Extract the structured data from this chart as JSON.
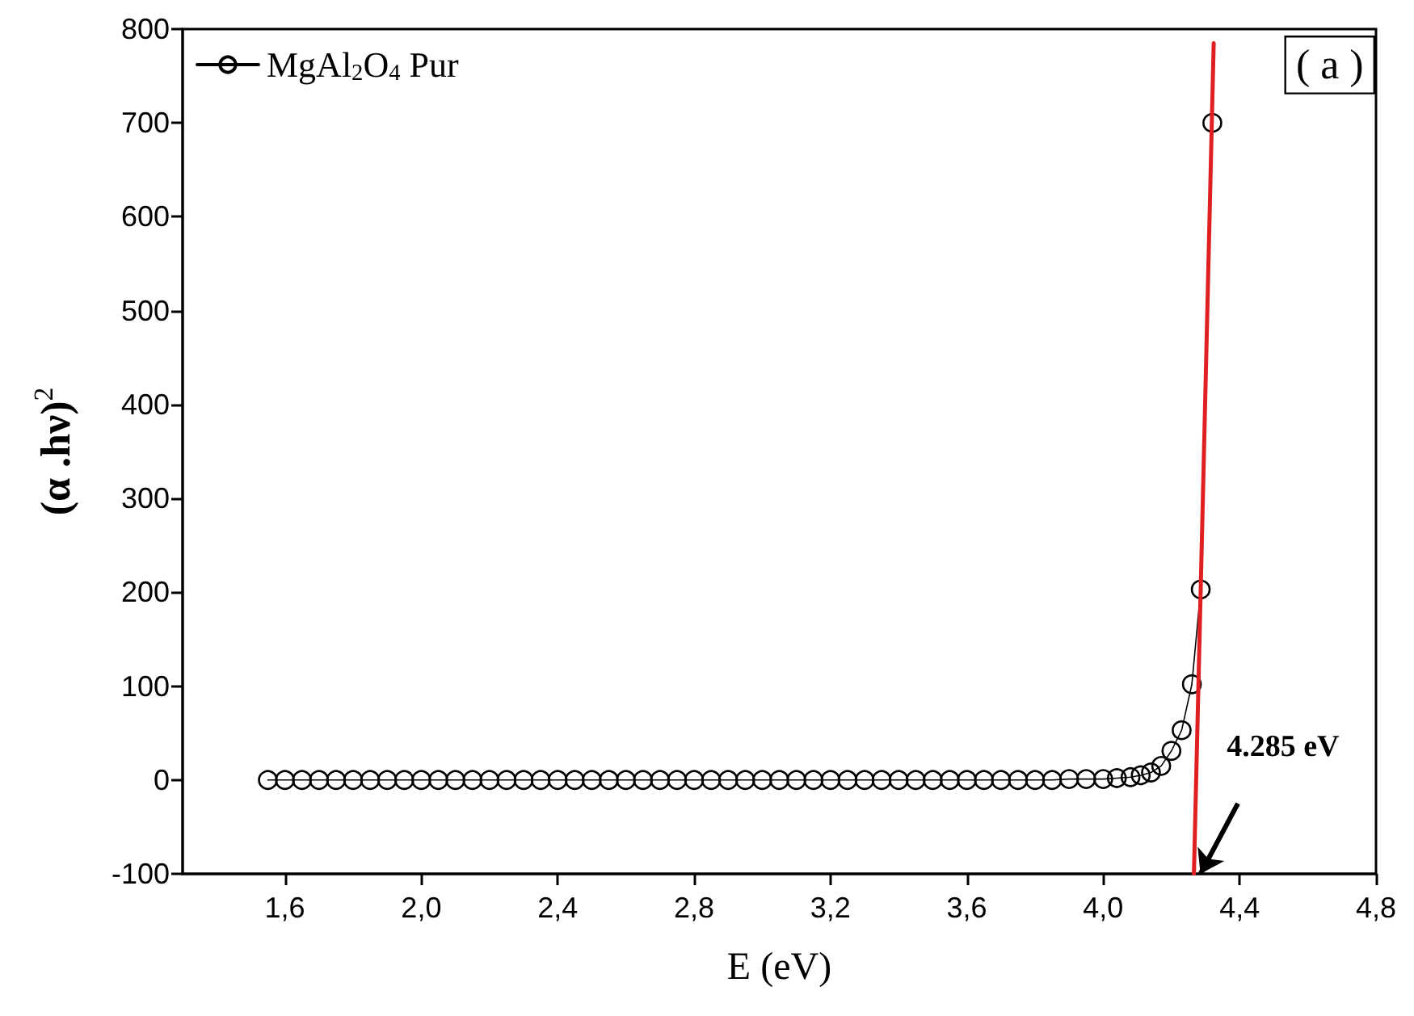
{
  "chart_data": {
    "type": "line",
    "xlabel": "E (eV)",
    "ylabel": "(α .hν)$^{2}$",
    "xlim": [
      1.3,
      4.8
    ],
    "ylim": [
      -100,
      800
    ],
    "xticks": [
      {
        "value": 1.6,
        "label": "1,6"
      },
      {
        "value": 2.0,
        "label": "2,0"
      },
      {
        "value": 2.4,
        "label": "2,4"
      },
      {
        "value": 2.8,
        "label": "2,8"
      },
      {
        "value": 3.2,
        "label": "3,2"
      },
      {
        "value": 3.6,
        "label": "3,6"
      },
      {
        "value": 4.0,
        "label": "4,0"
      },
      {
        "value": 4.4,
        "label": "4,4"
      },
      {
        "value": 4.8,
        "label": "4,8"
      }
    ],
    "yticks": [
      -100,
      0,
      100,
      200,
      300,
      400,
      500,
      600,
      700,
      800
    ],
    "grid": false,
    "legend": "top left",
    "marker": "circle",
    "line_style": "solid",
    "annotations": [
      "( a )",
      {
        "text": "4.285 eV",
        "x": 4.285,
        "y": -100
      }
    ],
    "series": [
      {
        "name": "MgAl$_{2}$O$_{4}$ Pur",
        "color": "#000000",
        "x": [
          1.55,
          1.6,
          1.65,
          1.7,
          1.75,
          1.8,
          1.85,
          1.9,
          1.95,
          2.0,
          2.05,
          2.1,
          2.15,
          2.2,
          2.25,
          2.3,
          2.35,
          2.4,
          2.45,
          2.5,
          2.55,
          2.6,
          2.65,
          2.7,
          2.75,
          2.8,
          2.85,
          2.9,
          2.95,
          3.0,
          3.05,
          3.1,
          3.15,
          3.2,
          3.25,
          3.3,
          3.35,
          3.4,
          3.45,
          3.5,
          3.55,
          3.6,
          3.65,
          3.7,
          3.75,
          3.8,
          3.85,
          3.9,
          3.95,
          4.0,
          4.04,
          4.08,
          4.11,
          4.14,
          4.17,
          4.2,
          4.23,
          4.26,
          4.286,
          4.32
        ],
        "values": [
          0,
          0,
          0,
          0,
          0,
          0,
          0,
          0,
          0,
          0,
          0,
          0,
          0,
          0,
          0,
          0,
          0,
          0,
          0,
          0,
          0,
          0,
          0,
          0,
          0,
          0,
          0,
          0,
          0,
          0,
          0,
          0,
          0,
          0,
          0,
          0,
          0,
          0,
          0,
          0,
          0,
          0,
          0,
          0,
          0,
          0,
          0,
          1,
          1,
          1,
          2,
          3,
          5,
          8,
          15,
          31,
          53,
          102,
          203,
          700
        ]
      },
      {
        "type": "line",
        "color": "#e02020",
        "marker": "none",
        "x": [
          4.266,
          4.324
        ],
        "values": [
          -100,
          785
        ]
      }
    ]
  }
}
